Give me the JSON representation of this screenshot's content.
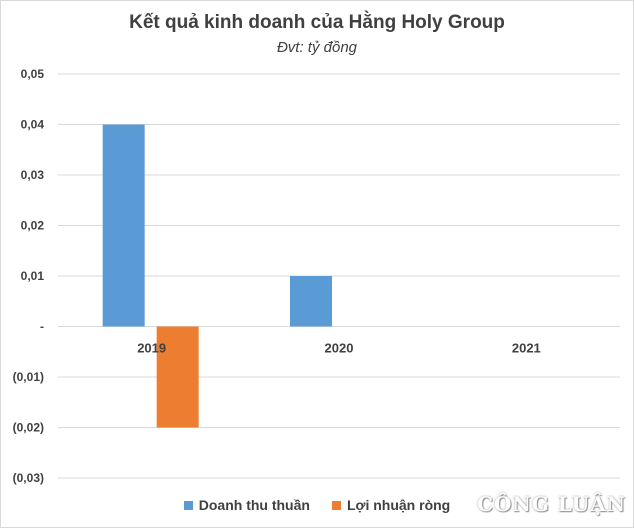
{
  "chart_data": {
    "type": "bar",
    "title": "Kết quả kinh doanh của Hằng Holy Group",
    "subtitle": "Đvt: tỷ đồng",
    "categories": [
      "2019",
      "2020",
      "2021"
    ],
    "series": [
      {
        "name": "Doanh thu thuần",
        "values": [
          0.04,
          0.01,
          0
        ],
        "color": "#5b9bd5"
      },
      {
        "name": "Lợi nhuận ròng",
        "values": [
          -0.02,
          0,
          0
        ],
        "color": "#ed7d31"
      }
    ],
    "ylim": [
      -0.03,
      0.05
    ],
    "yticks": [
      0.05,
      0.04,
      0.03,
      0.02,
      0.01,
      0,
      -0.01,
      -0.02,
      -0.03
    ],
    "ytick_labels": [
      "0,05",
      "0,04",
      "0,03",
      "0,02",
      "0,01",
      "-",
      "(0,01)",
      "(0,02)",
      "(0,03)"
    ],
    "grid": true,
    "legend_position": "bottom"
  },
  "watermark": {
    "text": "CÔNG LUẬN"
  }
}
